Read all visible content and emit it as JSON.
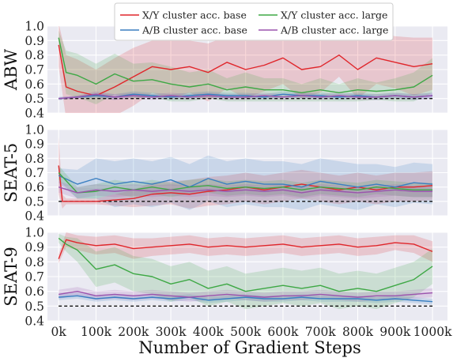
{
  "chart_data": {
    "type": "line",
    "xlabel": "Number of Gradient Steps",
    "x_ticks": [
      "0k",
      "100k",
      "200k",
      "300k",
      "400k",
      "500k",
      "600k",
      "700k",
      "800k",
      "900k",
      "1000k"
    ],
    "xlim": [
      -30000,
      1040000
    ],
    "y_ticks": [
      0.4,
      0.5,
      0.6,
      0.7,
      0.8,
      0.9,
      1.0
    ],
    "ylim": [
      0.4,
      1.0
    ],
    "grid": true,
    "legend": {
      "placement": "top-center",
      "entries": [
        {
          "label": "X/Y cluster acc. base",
          "color": "#e0262b"
        },
        {
          "label": "A/B cluster acc. base",
          "color": "#3a7fc1"
        },
        {
          "label": "X/Y cluster acc. large",
          "color": "#3ea845"
        },
        {
          "label": "A/B cluster acc. large",
          "color": "#9b53ad"
        }
      ]
    },
    "panels": [
      {
        "ylabel": "ABW",
        "baseline": 0.5,
        "series": [
          {
            "name": "X/Y cluster acc. base",
            "color": "#e0262b",
            "x": [
              0,
              20000,
              50000,
              100000,
              150000,
              200000,
              250000,
              300000,
              350000,
              400000,
              450000,
              500000,
              550000,
              600000,
              650000,
              700000,
              750000,
              800000,
              850000,
              900000,
              950000,
              1000000
            ],
            "y": [
              0.87,
              0.58,
              0.55,
              0.52,
              0.58,
              0.65,
              0.72,
              0.7,
              0.72,
              0.68,
              0.75,
              0.7,
              0.73,
              0.78,
              0.7,
              0.72,
              0.8,
              0.7,
              0.78,
              0.75,
              0.72,
              0.74
            ],
            "band": [
              0.15,
              0.22,
              0.22,
              0.18,
              0.2,
              0.2,
              0.18,
              0.2,
              0.18,
              0.2,
              0.18,
              0.2,
              0.18,
              0.18,
              0.2,
              0.18,
              0.15,
              0.2,
              0.18,
              0.18,
              0.2,
              0.18
            ]
          },
          {
            "name": "A/B cluster acc. base",
            "color": "#3a7fc1",
            "x": [
              0,
              50000,
              100000,
              150000,
              200000,
              250000,
              300000,
              350000,
              400000,
              450000,
              500000,
              550000,
              600000,
              650000,
              700000,
              750000,
              800000,
              850000,
              900000,
              950000,
              1000000
            ],
            "y": [
              0.5,
              0.51,
              0.52,
              0.51,
              0.53,
              0.52,
              0.51,
              0.52,
              0.53,
              0.52,
              0.52,
              0.51,
              0.53,
              0.52,
              0.52,
              0.51,
              0.52,
              0.51,
              0.52,
              0.51,
              0.52
            ],
            "band": [
              0.01,
              0.01,
              0.02,
              0.02,
              0.02,
              0.02,
              0.02,
              0.02,
              0.02,
              0.02,
              0.02,
              0.02,
              0.02,
              0.02,
              0.02,
              0.02,
              0.02,
              0.02,
              0.02,
              0.02,
              0.02
            ]
          },
          {
            "name": "X/Y cluster acc. large",
            "color": "#3ea845",
            "x": [
              0,
              20000,
              50000,
              100000,
              150000,
              200000,
              250000,
              300000,
              350000,
              400000,
              450000,
              500000,
              550000,
              600000,
              650000,
              700000,
              750000,
              800000,
              850000,
              900000,
              950000,
              1000000
            ],
            "y": [
              0.92,
              0.68,
              0.66,
              0.6,
              0.67,
              0.62,
              0.63,
              0.6,
              0.58,
              0.6,
              0.56,
              0.58,
              0.56,
              0.56,
              0.54,
              0.56,
              0.54,
              0.56,
              0.55,
              0.56,
              0.58,
              0.66
            ],
            "band": [
              0.05,
              0.15,
              0.15,
              0.14,
              0.14,
              0.12,
              0.12,
              0.12,
              0.1,
              0.1,
              0.08,
              0.1,
              0.08,
              0.08,
              0.06,
              0.08,
              0.06,
              0.08,
              0.06,
              0.08,
              0.1,
              0.12
            ]
          },
          {
            "name": "A/B cluster acc. large",
            "color": "#9b53ad",
            "x": [
              0,
              50000,
              100000,
              150000,
              200000,
              250000,
              300000,
              350000,
              400000,
              450000,
              500000,
              550000,
              600000,
              650000,
              700000,
              750000,
              800000,
              850000,
              900000,
              950000,
              1000000
            ],
            "y": [
              0.5,
              0.51,
              0.53,
              0.51,
              0.52,
              0.51,
              0.52,
              0.51,
              0.52,
              0.51,
              0.51,
              0.52,
              0.51,
              0.52,
              0.51,
              0.52,
              0.51,
              0.51,
              0.52,
              0.51,
              0.52
            ],
            "band": [
              0.01,
              0.01,
              0.02,
              0.02,
              0.02,
              0.02,
              0.02,
              0.02,
              0.02,
              0.02,
              0.02,
              0.02,
              0.02,
              0.02,
              0.02,
              0.02,
              0.02,
              0.02,
              0.02,
              0.02,
              0.02
            ]
          }
        ]
      },
      {
        "ylabel": "SEAT-5",
        "baseline": 0.5,
        "series": [
          {
            "name": "X/Y cluster acc. base",
            "color": "#e0262b",
            "x": [
              0,
              10000,
              20000,
              50000,
              100000,
              150000,
              200000,
              250000,
              300000,
              350000,
              400000,
              450000,
              500000,
              550000,
              600000,
              650000,
              700000,
              750000,
              800000,
              850000,
              900000,
              950000,
              1000000
            ],
            "y": [
              0.75,
              0.5,
              0.5,
              0.5,
              0.5,
              0.51,
              0.52,
              0.55,
              0.56,
              0.55,
              0.57,
              0.58,
              0.6,
              0.58,
              0.6,
              0.62,
              0.6,
              0.58,
              0.6,
              0.58,
              0.6,
              0.6,
              0.61
            ],
            "band": [
              0.2,
              0.05,
              0.02,
              0.02,
              0.02,
              0.04,
              0.06,
              0.08,
              0.08,
              0.1,
              0.1,
              0.1,
              0.1,
              0.1,
              0.1,
              0.1,
              0.1,
              0.1,
              0.1,
              0.1,
              0.1,
              0.1,
              0.1
            ]
          },
          {
            "name": "A/B cluster acc. base",
            "color": "#3a7fc1",
            "x": [
              0,
              50000,
              100000,
              150000,
              200000,
              250000,
              300000,
              350000,
              400000,
              450000,
              500000,
              550000,
              600000,
              650000,
              700000,
              750000,
              800000,
              850000,
              900000,
              950000,
              1000000
            ],
            "y": [
              0.68,
              0.62,
              0.66,
              0.62,
              0.64,
              0.62,
              0.65,
              0.6,
              0.66,
              0.62,
              0.64,
              0.62,
              0.62,
              0.6,
              0.64,
              0.62,
              0.6,
              0.62,
              0.6,
              0.63,
              0.62
            ],
            "band": [
              0.05,
              0.1,
              0.14,
              0.16,
              0.16,
              0.16,
              0.16,
              0.16,
              0.16,
              0.16,
              0.16,
              0.16,
              0.16,
              0.16,
              0.16,
              0.16,
              0.16,
              0.14,
              0.14,
              0.14,
              0.14
            ]
          },
          {
            "name": "X/Y cluster acc. large",
            "color": "#3ea845",
            "x": [
              0,
              50000,
              100000,
              150000,
              200000,
              250000,
              300000,
              350000,
              400000,
              450000,
              500000,
              550000,
              600000,
              650000,
              700000,
              750000,
              800000,
              850000,
              900000,
              950000,
              1000000
            ],
            "y": [
              0.7,
              0.56,
              0.57,
              0.6,
              0.58,
              0.6,
              0.58,
              0.6,
              0.61,
              0.59,
              0.6,
              0.59,
              0.6,
              0.58,
              0.6,
              0.59,
              0.58,
              0.6,
              0.59,
              0.58,
              0.58
            ],
            "band": [
              0.05,
              0.04,
              0.05,
              0.05,
              0.05,
              0.05,
              0.05,
              0.05,
              0.05,
              0.05,
              0.05,
              0.05,
              0.05,
              0.05,
              0.05,
              0.05,
              0.05,
              0.05,
              0.05,
              0.05,
              0.05
            ]
          },
          {
            "name": "A/B cluster acc. large",
            "color": "#9b53ad",
            "x": [
              0,
              50000,
              100000,
              150000,
              200000,
              250000,
              300000,
              350000,
              400000,
              450000,
              500000,
              550000,
              600000,
              650000,
              700000,
              750000,
              800000,
              850000,
              900000,
              950000,
              1000000
            ],
            "y": [
              0.6,
              0.56,
              0.58,
              0.57,
              0.58,
              0.57,
              0.58,
              0.57,
              0.58,
              0.57,
              0.58,
              0.57,
              0.58,
              0.56,
              0.58,
              0.57,
              0.56,
              0.57,
              0.58,
              0.57,
              0.57
            ],
            "band": [
              0.04,
              0.04,
              0.04,
              0.04,
              0.04,
              0.04,
              0.04,
              0.04,
              0.04,
              0.04,
              0.04,
              0.04,
              0.04,
              0.04,
              0.04,
              0.04,
              0.04,
              0.04,
              0.04,
              0.04,
              0.04
            ]
          }
        ]
      },
      {
        "ylabel": "SEAT-9",
        "baseline": 0.5,
        "series": [
          {
            "name": "X/Y cluster acc. base",
            "color": "#e0262b",
            "x": [
              0,
              20000,
              50000,
              100000,
              150000,
              200000,
              250000,
              300000,
              350000,
              400000,
              450000,
              500000,
              550000,
              600000,
              650000,
              700000,
              750000,
              800000,
              850000,
              900000,
              950000,
              1000000
            ],
            "y": [
              0.82,
              0.95,
              0.93,
              0.91,
              0.92,
              0.89,
              0.9,
              0.91,
              0.92,
              0.9,
              0.91,
              0.9,
              0.91,
              0.92,
              0.9,
              0.91,
              0.92,
              0.9,
              0.91,
              0.93,
              0.92,
              0.87
            ],
            "band": [
              0.03,
              0.05,
              0.05,
              0.06,
              0.06,
              0.07,
              0.06,
              0.06,
              0.06,
              0.06,
              0.06,
              0.06,
              0.06,
              0.06,
              0.06,
              0.06,
              0.06,
              0.06,
              0.06,
              0.05,
              0.06,
              0.07
            ]
          },
          {
            "name": "A/B cluster acc. base",
            "color": "#3a7fc1",
            "x": [
              0,
              50000,
              100000,
              150000,
              200000,
              250000,
              300000,
              350000,
              400000,
              450000,
              500000,
              550000,
              600000,
              650000,
              700000,
              750000,
              800000,
              850000,
              900000,
              950000,
              1000000
            ],
            "y": [
              0.56,
              0.57,
              0.55,
              0.56,
              0.55,
              0.56,
              0.55,
              0.56,
              0.54,
              0.55,
              0.56,
              0.55,
              0.55,
              0.56,
              0.55,
              0.55,
              0.55,
              0.54,
              0.55,
              0.54,
              0.53
            ],
            "band": [
              0.02,
              0.02,
              0.02,
              0.02,
              0.02,
              0.02,
              0.02,
              0.02,
              0.02,
              0.02,
              0.02,
              0.02,
              0.02,
              0.02,
              0.02,
              0.02,
              0.02,
              0.02,
              0.02,
              0.02,
              0.02
            ]
          },
          {
            "name": "X/Y cluster acc. large",
            "color": "#3ea845",
            "x": [
              0,
              20000,
              50000,
              100000,
              150000,
              200000,
              250000,
              300000,
              350000,
              400000,
              450000,
              500000,
              550000,
              600000,
              650000,
              700000,
              750000,
              800000,
              850000,
              900000,
              950000,
              1000000
            ],
            "y": [
              0.96,
              0.92,
              0.88,
              0.75,
              0.78,
              0.72,
              0.7,
              0.65,
              0.68,
              0.62,
              0.65,
              0.6,
              0.62,
              0.64,
              0.62,
              0.64,
              0.6,
              0.62,
              0.6,
              0.64,
              0.68,
              0.77
            ],
            "band": [
              0.03,
              0.05,
              0.08,
              0.12,
              0.12,
              0.12,
              0.12,
              0.12,
              0.12,
              0.12,
              0.12,
              0.12,
              0.12,
              0.12,
              0.12,
              0.12,
              0.12,
              0.12,
              0.12,
              0.12,
              0.12,
              0.12
            ]
          },
          {
            "name": "A/B cluster acc. large",
            "color": "#9b53ad",
            "x": [
              0,
              50000,
              100000,
              150000,
              200000,
              250000,
              300000,
              350000,
              400000,
              450000,
              500000,
              550000,
              600000,
              650000,
              700000,
              750000,
              800000,
              850000,
              900000,
              950000,
              1000000
            ],
            "y": [
              0.58,
              0.6,
              0.57,
              0.58,
              0.57,
              0.58,
              0.57,
              0.56,
              0.57,
              0.58,
              0.57,
              0.56,
              0.57,
              0.57,
              0.58,
              0.57,
              0.56,
              0.57,
              0.57,
              0.58,
              0.59
            ],
            "band": [
              0.03,
              0.03,
              0.03,
              0.03,
              0.03,
              0.03,
              0.03,
              0.03,
              0.03,
              0.03,
              0.03,
              0.03,
              0.03,
              0.03,
              0.03,
              0.03,
              0.03,
              0.03,
              0.03,
              0.03,
              0.03
            ]
          }
        ]
      }
    ]
  }
}
